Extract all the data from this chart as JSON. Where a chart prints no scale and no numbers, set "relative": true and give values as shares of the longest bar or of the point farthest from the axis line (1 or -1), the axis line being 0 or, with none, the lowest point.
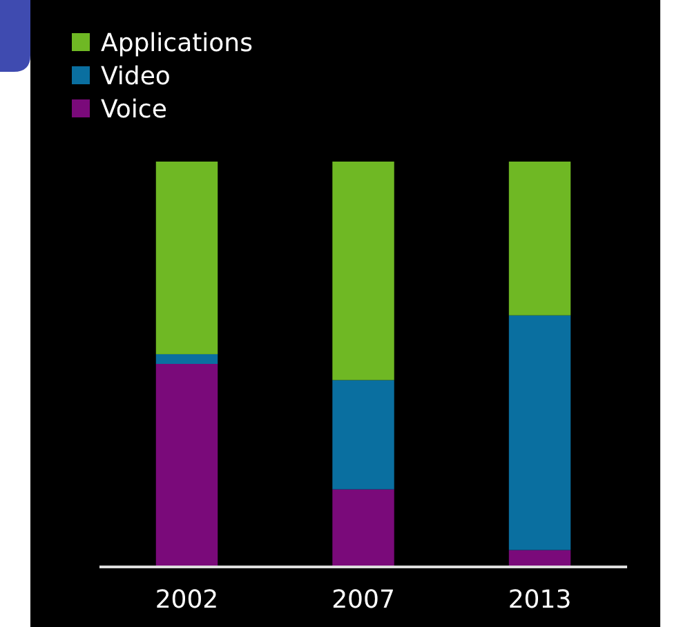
{
  "chart_data": {
    "type": "bar",
    "stacked": true,
    "relative": true,
    "categories": [
      "2002",
      "2007",
      "2013"
    ],
    "legend": "top left",
    "series": [
      {
        "name": "Voice",
        "color": "#7a0a7a",
        "values": [
          0.5,
          0.19,
          0.04
        ]
      },
      {
        "name": "Video",
        "color": "#0a6fa0",
        "values": [
          0.024,
          0.27,
          0.58
        ]
      },
      {
        "name": "Applications",
        "color": "#6fb824",
        "values": [
          0.476,
          0.54,
          0.38
        ]
      }
    ]
  }
}
